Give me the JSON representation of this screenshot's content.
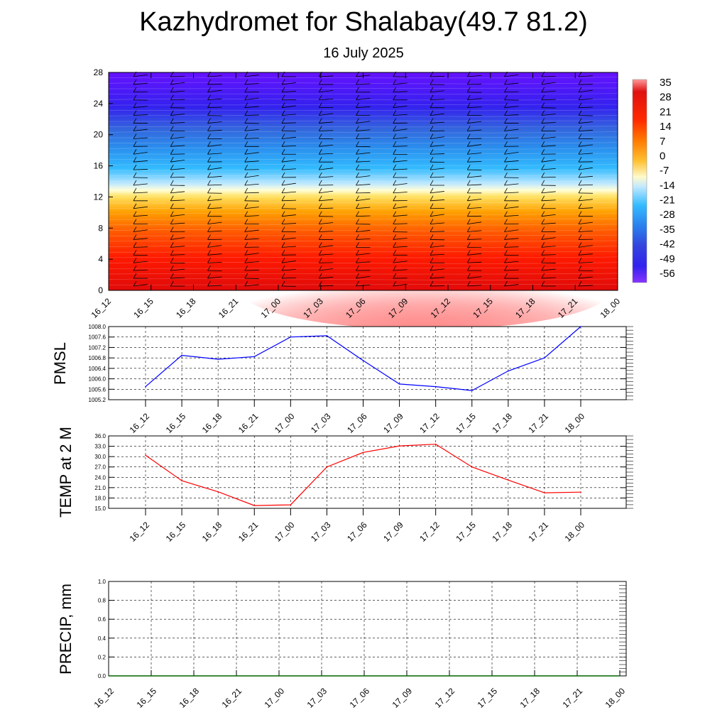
{
  "title": "Kazhydromet for Shalabay(49.7 81.2)",
  "subtitle": "16 July 2025",
  "time_labels": [
    "16_12",
    "16_15",
    "16_18",
    "16_21",
    "17_00",
    "17_03",
    "17_06",
    "17_09",
    "17_12",
    "17_15",
    "17_18",
    "17_21",
    "18_00"
  ],
  "colors": {
    "pmsl_line": "#0000ff",
    "temp_line": "#ff0000",
    "precip_line": "#006400",
    "grid": "#000000"
  },
  "chart_data": [
    {
      "type": "heatmap",
      "name": "temperature-profile",
      "x": [
        "16_12",
        "16_15",
        "16_18",
        "16_21",
        "17_00",
        "17_03",
        "17_06",
        "17_09",
        "17_12",
        "17_15",
        "17_18",
        "17_21",
        "18_00"
      ],
      "ylim": [
        0,
        28
      ],
      "yticks": [
        "0",
        "4",
        "8",
        "12",
        "16",
        "20",
        "24",
        "28"
      ],
      "colorbar_labels": [
        "35",
        "28",
        "21",
        "14",
        "7",
        "0",
        "-7",
        "-14",
        "-21",
        "-28",
        "-35",
        "-42",
        "-49",
        "-56"
      ],
      "colorbar_colors": [
        "#ff9999",
        "#e01010",
        "#ff2a00",
        "#ff6a00",
        "#ffaa00",
        "#ffd84a",
        "#fffacc",
        "#bfe8ff",
        "#33bbff",
        "#2288ee",
        "#3355dd",
        "#3322ee",
        "#5511ff",
        "#8833ff"
      ],
      "wind_barbs": true,
      "surface_warm_patch": "17_06 to 17_21"
    },
    {
      "type": "line",
      "name": "pmsl",
      "ylabel": "PMSL",
      "x": [
        "16_12",
        "16_15",
        "16_18",
        "16_21",
        "17_00",
        "17_03",
        "17_06",
        "17_09",
        "17_12",
        "17_15",
        "17_18",
        "17_21",
        "18_00"
      ],
      "series": [
        {
          "values": [
            1005.7,
            1006.9,
            1006.75,
            1006.85,
            1007.6,
            1007.65,
            1006.7,
            1005.8,
            1005.7,
            1005.55,
            1006.3,
            1006.8,
            1008.0
          ]
        }
      ],
      "ylim": [
        1005.2,
        1008.0
      ],
      "yticks": [
        "1005.2",
        "1005.6",
        "1006.0",
        "1006.4",
        "1006.8",
        "1007.2",
        "1007.6",
        "1008.0"
      ],
      "grid": true
    },
    {
      "type": "line",
      "name": "temp-2m",
      "ylabel": "TEMP at 2 M",
      "x": [
        "16_12",
        "16_15",
        "16_18",
        "16_21",
        "17_00",
        "17_03",
        "17_06",
        "17_09",
        "17_12",
        "17_15",
        "17_18",
        "17_21",
        "18_00"
      ],
      "series": [
        {
          "values": [
            30.4,
            23.0,
            19.8,
            15.8,
            16.0,
            27.0,
            31.2,
            33.1,
            33.6,
            27.0,
            23.2,
            19.5,
            19.7
          ]
        }
      ],
      "ylim": [
        15.0,
        36.0
      ],
      "yticks": [
        "15.0",
        "18.0",
        "21.0",
        "24.0",
        "27.0",
        "30.0",
        "33.0",
        "36.0"
      ],
      "grid": true
    },
    {
      "type": "line",
      "name": "precip",
      "ylabel": "PRECIP, mm",
      "x": [
        "16_12",
        "16_15",
        "16_18",
        "16_21",
        "17_00",
        "17_03",
        "17_06",
        "17_09",
        "17_12",
        "17_15",
        "17_18",
        "17_21",
        "18_00"
      ],
      "series": [
        {
          "values": [
            0,
            0,
            0,
            0,
            0,
            0,
            0,
            0,
            0,
            0,
            0,
            0,
            0
          ]
        }
      ],
      "ylim": [
        0.0,
        1.0
      ],
      "yticks": [
        "0.0",
        "0.2",
        "0.4",
        "0.6",
        "0.8",
        "1.0"
      ],
      "grid": true
    }
  ]
}
